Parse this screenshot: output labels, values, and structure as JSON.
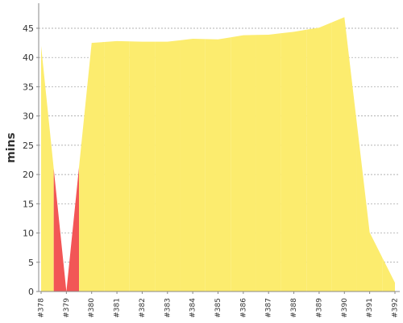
{
  "chart_data": {
    "type": "area",
    "y_label": "mins",
    "categories": [
      "#378",
      "#379",
      "#380",
      "#381",
      "#382",
      "#383",
      "#384",
      "#385",
      "#386",
      "#387",
      "#388",
      "#389",
      "#390",
      "#391",
      "#392"
    ],
    "values": [
      42,
      0,
      42.5,
      42.8,
      42.7,
      42.7,
      43.2,
      43.1,
      43.8,
      43.9,
      44.4,
      45.1,
      46.9,
      10.1,
      1.5
    ],
    "point_colors": [
      "#fcec6e",
      "#f25656",
      "#fcec6e",
      "#fcec6e",
      "#fcec6e",
      "#fcec6e",
      "#fcec6e",
      "#fcec6e",
      "#fcec6e",
      "#fcec6e",
      "#fcec6e",
      "#fcec6e",
      "#fcec6e",
      "#fcec6e",
      "#fcec6e"
    ],
    "ylim": [
      0,
      49
    ],
    "yticks": [
      0,
      5,
      10,
      15,
      20,
      25,
      30,
      35,
      40,
      45
    ],
    "grid": true
  }
}
